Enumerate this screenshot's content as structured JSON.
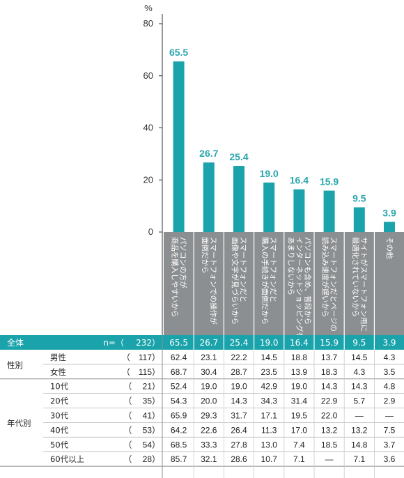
{
  "chart_data": {
    "type": "bar",
    "ylabel": "%",
    "ylim": [
      0,
      80
    ],
    "yticks": [
      0,
      20,
      40,
      60,
      80
    ],
    "categories": [
      "パソコンの方が\n商品を購入しやすいから",
      "スマートフォンでの操作が\n面倒だから",
      "スマートフォンだと\n画像や文字が見づらいから",
      "スマートフォンだと\n購入の手続きが面倒だから",
      "パソコンも含め、普段から\nインターネットショッピングを\nあまりしないから",
      "スマートフォンだとページの\n読み込み速度が遅いから",
      "サイトがスマートフォン用に\n最適化されていないから",
      "その他"
    ],
    "values": [
      65.5,
      26.7,
      25.4,
      19.0,
      16.4,
      15.9,
      9.5,
      3.9
    ],
    "value_labels": [
      "65.5",
      "26.7",
      "25.4",
      "19.0",
      "16.4",
      "15.9",
      "9.5",
      "3.9"
    ],
    "bar_color": "#1aa3ab",
    "header_color": "#8c8f91"
  },
  "table": {
    "total": {
      "group": "全体",
      "n_prefix": "n=（",
      "n": "232）",
      "values": [
        "65.5",
        "26.7",
        "25.4",
        "19.0",
        "16.4",
        "15.9",
        "9.5",
        "3.9"
      ],
      "bg": "#1aa3ab"
    },
    "groups": [
      {
        "label": "性別",
        "rows": [
          {
            "name": "男性",
            "n": "（　117）",
            "values": [
              "62.4",
              "23.1",
              "22.2",
              "14.5",
              "18.8",
              "13.7",
              "14.5",
              "4.3"
            ]
          },
          {
            "name": "女性",
            "n": "（　115）",
            "values": [
              "68.7",
              "30.4",
              "28.7",
              "23.5",
              "13.9",
              "18.3",
              "4.3",
              "3.5"
            ]
          }
        ]
      },
      {
        "label": "年代別",
        "rows": [
          {
            "name": "10代",
            "n": "（　 21）",
            "values": [
              "52.4",
              "19.0",
              "19.0",
              "42.9",
              "19.0",
              "14.3",
              "14.3",
              "4.8"
            ]
          },
          {
            "name": "20代",
            "n": "（　 35）",
            "values": [
              "54.3",
              "20.0",
              "14.3",
              "34.3",
              "31.4",
              "22.9",
              "5.7",
              "2.9"
            ]
          },
          {
            "name": "30代",
            "n": "（　 41）",
            "values": [
              "65.9",
              "29.3",
              "31.7",
              "17.1",
              "19.5",
              "22.0",
              "—",
              "—"
            ]
          },
          {
            "name": "40代",
            "n": "（　 53）",
            "values": [
              "64.2",
              "22.6",
              "26.4",
              "11.3",
              "17.0",
              "13.2",
              "13.2",
              "7.5"
            ]
          },
          {
            "name": "50代",
            "n": "（　 54）",
            "values": [
              "68.5",
              "33.3",
              "27.8",
              "13.0",
              "7.4",
              "18.5",
              "14.8",
              "3.7"
            ]
          },
          {
            "name": "60代以上",
            "n": "（　 28）",
            "values": [
              "85.7",
              "32.1",
              "28.6",
              "10.7",
              "7.1",
              "—",
              "7.1",
              "3.6"
            ]
          }
        ]
      }
    ]
  }
}
